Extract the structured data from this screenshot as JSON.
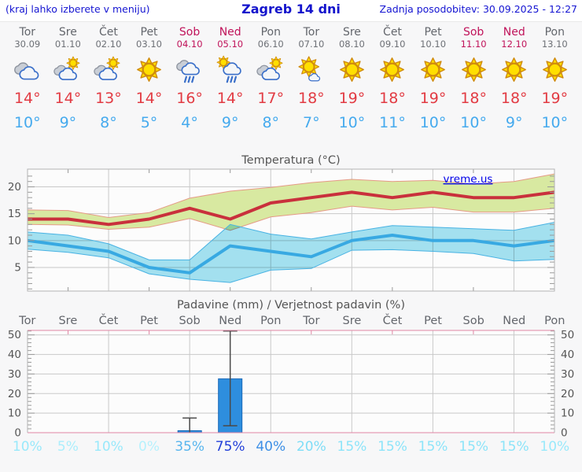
{
  "header": {
    "left_note": "(kraj lahko izberete v meniju)",
    "title": "Zagreb 14 dni",
    "updated": "Zadnja posodobitev: 30.09.2025 - 12:27"
  },
  "branding": {
    "watermark": "vreme.us"
  },
  "colors": {
    "header_blue": "#1515d2",
    "weekday": "#63666c",
    "weekend": "#c0135a",
    "tmax_text": "#e23b43",
    "tmin_text": "#45aaee",
    "tmax_line": "#c9303c",
    "tmax_band": "#d8e9a1",
    "tmax_band_edge": "#e59a86",
    "tmin_line": "#38a9e2",
    "tmin_band": "#a5e3f2",
    "tmin_band_edge": "#47b2e3",
    "bar_fill": "#2e8ede",
    "bar_stroke": "#1868b8",
    "grid": "#c9c9c9",
    "axis_text": "#555555",
    "pink_border": "#e086a4",
    "watermark_blue": "#0000e8"
  },
  "days": [
    {
      "name": "Tor",
      "date": "30.09",
      "weekend": false,
      "icon": "cloudy-icon",
      "tmax_label": "14°",
      "tmin_label": "10°",
      "prob_label": "10%",
      "prob_color": "#99e9fb"
    },
    {
      "name": "Sre",
      "date": "01.10",
      "weekend": false,
      "icon": "partly-cloudy-icon",
      "tmax_label": "14°",
      "tmin_label": "9°",
      "prob_label": "5%",
      "prob_color": "#abeefc"
    },
    {
      "name": "Čet",
      "date": "02.10",
      "weekend": false,
      "icon": "partly-cloudy-icon",
      "tmax_label": "13°",
      "tmin_label": "8°",
      "prob_label": "10%",
      "prob_color": "#99e9fb"
    },
    {
      "name": "Pet",
      "date": "03.10",
      "weekend": false,
      "icon": "sunny-icon",
      "tmax_label": "14°",
      "tmin_label": "5°",
      "prob_label": "0%",
      "prob_color": "#b6f1fd"
    },
    {
      "name": "Sob",
      "date": "04.10",
      "weekend": true,
      "icon": "rain-icon",
      "tmax_label": "16°",
      "tmin_label": "4°",
      "prob_label": "35%",
      "prob_color": "#58b5ee"
    },
    {
      "name": "Ned",
      "date": "05.10",
      "weekend": true,
      "icon": "sun-rain-icon",
      "tmax_label": "14°",
      "tmin_label": "9°",
      "prob_label": "75%",
      "prob_color": "#2340d9"
    },
    {
      "name": "Pon",
      "date": "06.10",
      "weekend": false,
      "icon": "partly-cloudy-icon",
      "tmax_label": "17°",
      "tmin_label": "8°",
      "prob_label": "40%",
      "prob_color": "#3d8fe6"
    },
    {
      "name": "Tor",
      "date": "07.10",
      "weekend": false,
      "icon": "mostly-sunny-icon",
      "tmax_label": "18°",
      "tmin_label": "7°",
      "prob_label": "20%",
      "prob_color": "#7eddf7"
    },
    {
      "name": "Sre",
      "date": "08.10",
      "weekend": false,
      "icon": "sunny-icon",
      "tmax_label": "19°",
      "tmin_label": "10°",
      "prob_label": "15%",
      "prob_color": "#8ce4f9"
    },
    {
      "name": "Čet",
      "date": "09.10",
      "weekend": false,
      "icon": "sunny-icon",
      "tmax_label": "18°",
      "tmin_label": "11°",
      "prob_label": "15%",
      "prob_color": "#8ce4f9"
    },
    {
      "name": "Pet",
      "date": "10.10",
      "weekend": false,
      "icon": "sunny-icon",
      "tmax_label": "19°",
      "tmin_label": "10°",
      "prob_label": "15%",
      "prob_color": "#8ce4f9"
    },
    {
      "name": "Sob",
      "date": "11.10",
      "weekend": true,
      "icon": "sunny-icon",
      "tmax_label": "18°",
      "tmin_label": "10°",
      "prob_label": "15%",
      "prob_color": "#8ce4f9"
    },
    {
      "name": "Ned",
      "date": "12.10",
      "weekend": true,
      "icon": "sunny-icon",
      "tmax_label": "18°",
      "tmin_label": "9°",
      "prob_label": "15%",
      "prob_color": "#8ce4f9"
    },
    {
      "name": "Pon",
      "date": "13.10",
      "weekend": false,
      "icon": "sunny-icon",
      "tmax_label": "19°",
      "tmin_label": "10°",
      "prob_label": "10%",
      "prob_color": "#99e9fb"
    }
  ],
  "chart_data": [
    {
      "type": "line",
      "title": "Temperatura (°C)",
      "watermark": "vreme.us",
      "categories": [
        "Tor 30.09",
        "Sre 01.10",
        "Čet 02.10",
        "Pet 03.10",
        "Sob 04.10",
        "Ned 05.10",
        "Pon 06.10",
        "Tor 07.10",
        "Sre 08.10",
        "Čet 09.10",
        "Pet 10.10",
        "Sob 11.10",
        "Ned 12.10",
        "Pon 13.10"
      ],
      "ylim": [
        0.6,
        23.3
      ],
      "yticks": [
        5,
        10,
        15,
        20
      ],
      "grid": "on",
      "series": [
        {
          "name": "max-temp",
          "type": "line",
          "values": [
            14,
            14,
            13,
            14,
            16,
            14,
            17,
            18,
            19,
            18,
            19,
            18,
            18,
            19
          ]
        },
        {
          "name": "max-temp-range",
          "type": "band",
          "upper": [
            15.7,
            15.6,
            14.3,
            15.2,
            17.9,
            19.2,
            19.9,
            20.8,
            21.4,
            21.0,
            21.2,
            20.5,
            21.0,
            22.4
          ],
          "lower": [
            13.0,
            12.9,
            12.1,
            12.5,
            14.1,
            11.9,
            14.4,
            15.2,
            16.4,
            15.7,
            16.2,
            15.3,
            15.3,
            16.0
          ]
        },
        {
          "name": "min-temp",
          "type": "line",
          "values": [
            10,
            9,
            8,
            5,
            4,
            9,
            8,
            7,
            10,
            11,
            10,
            10,
            9,
            10
          ]
        },
        {
          "name": "min-temp-range",
          "type": "band",
          "upper": [
            11.6,
            11.0,
            9.4,
            6.4,
            6.4,
            13.0,
            11.2,
            10.3,
            11.6,
            12.8,
            12.5,
            12.2,
            11.9,
            13.4
          ],
          "lower": [
            8.4,
            7.8,
            6.8,
            3.8,
            2.8,
            2.2,
            4.5,
            4.8,
            8.2,
            8.3,
            8.0,
            7.6,
            6.2,
            6.5
          ]
        }
      ]
    },
    {
      "type": "bar",
      "title": "Padavine (mm) / Verjetnost padavin (%)",
      "categories": [
        "Tor",
        "Sre",
        "Čet",
        "Pet",
        "Sob",
        "Ned",
        "Pon",
        "Tor",
        "Sre",
        "Čet",
        "Pet",
        "Sob",
        "Ned",
        "Pon"
      ],
      "values_mm": [
        0,
        0,
        0,
        0,
        1,
        27.5,
        0,
        0,
        0,
        0,
        0,
        0,
        0,
        0
      ],
      "whisker_low": [
        null,
        null,
        null,
        null,
        0,
        3.5,
        null,
        null,
        null,
        null,
        null,
        null,
        null,
        null
      ],
      "whisker_high": [
        null,
        null,
        null,
        null,
        7.5,
        52,
        null,
        null,
        null,
        null,
        null,
        null,
        null,
        null
      ],
      "probability_percent": [
        10,
        5,
        10,
        0,
        35,
        75,
        40,
        20,
        15,
        15,
        15,
        15,
        15,
        10
      ],
      "ylim": [
        0,
        52.3
      ],
      "yticks": [
        0,
        10,
        20,
        30,
        40,
        50
      ],
      "grid": "on"
    }
  ]
}
